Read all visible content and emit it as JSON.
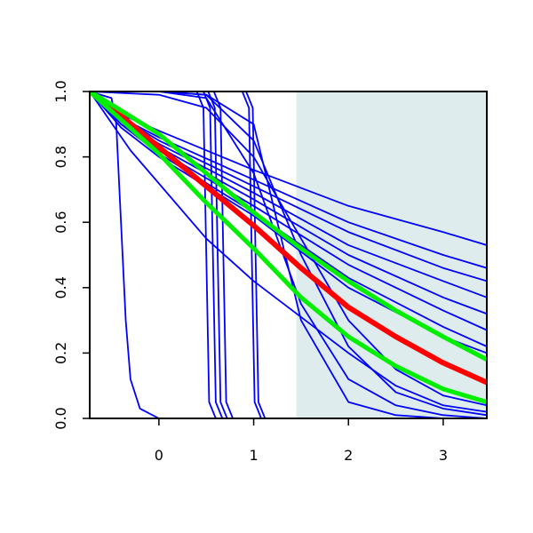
{
  "chart_data": {
    "type": "line",
    "xlim": [
      -0.73,
      3.46
    ],
    "ylim": [
      0,
      1
    ],
    "xticks": [
      0,
      1,
      2,
      3
    ],
    "yticks": [
      {
        "value": 0,
        "label": "0.0"
      },
      {
        "value": 0.2,
        "label": "0.2"
      },
      {
        "value": 0.4,
        "label": "0.4"
      },
      {
        "value": 0.6,
        "label": "0.6"
      },
      {
        "value": 0.8,
        "label": "0.8"
      },
      {
        "value": 1,
        "label": "1.0"
      }
    ],
    "shaded_region": {
      "x": [
        1.45,
        3.46
      ],
      "color": "#dfeced"
    },
    "series": [
      {
        "color": "#0000ff",
        "width": 1.8,
        "x": [
          -0.73,
          -0.4,
          0,
          1,
          2,
          3,
          3.46
        ],
        "values": [
          1,
          0.93,
          0.88,
          0.76,
          0.65,
          0.57,
          0.53
        ]
      },
      {
        "color": "#0000ff",
        "width": 1.8,
        "x": [
          -0.73,
          -0.4,
          0,
          1,
          2,
          3,
          3.46
        ],
        "values": [
          1,
          0.92,
          0.86,
          0.73,
          0.6,
          0.5,
          0.46
        ]
      },
      {
        "color": "#0000ff",
        "width": 1.8,
        "x": [
          -0.73,
          -0.4,
          0,
          1,
          2,
          3,
          3.46
        ],
        "values": [
          1,
          0.92,
          0.85,
          0.71,
          0.57,
          0.46,
          0.42
        ]
      },
      {
        "color": "#0000ff",
        "width": 1.8,
        "x": [
          -0.73,
          -0.4,
          0,
          1,
          2,
          3,
          3.46
        ],
        "values": [
          1,
          0.91,
          0.84,
          0.69,
          0.53,
          0.42,
          0.37
        ]
      },
      {
        "color": "#0000ff",
        "width": 1.8,
        "x": [
          -0.73,
          -0.4,
          0,
          1,
          2,
          3,
          3.46
        ],
        "values": [
          1,
          0.91,
          0.83,
          0.67,
          0.5,
          0.37,
          0.32
        ]
      },
      {
        "color": "#0000ff",
        "width": 1.8,
        "x": [
          -0.73,
          -0.4,
          0,
          1,
          2,
          3,
          3.46
        ],
        "values": [
          1,
          0.9,
          0.82,
          0.65,
          0.47,
          0.33,
          0.27
        ]
      },
      {
        "color": "#0000ff",
        "width": 1.8,
        "x": [
          -0.73,
          -0.4,
          0,
          1,
          2,
          3,
          3.46
        ],
        "values": [
          1,
          0.9,
          0.81,
          0.63,
          0.43,
          0.28,
          0.22
        ]
      },
      {
        "color": "#0000ff",
        "width": 1.8,
        "x": [
          -0.73,
          -0.4,
          0,
          1,
          2,
          3,
          3.46
        ],
        "values": [
          1,
          0.89,
          0.8,
          0.62,
          0.4,
          0.25,
          0.2
        ]
      },
      {
        "color": "#0000ff",
        "width": 1.8,
        "x": [
          -0.73,
          -0.5,
          -0.45,
          -0.4,
          -0.35,
          -0.3,
          -0.2,
          0,
          3.46
        ],
        "values": [
          1,
          0.98,
          0.9,
          0.6,
          0.3,
          0.12,
          0.03,
          0,
          0
        ]
      },
      {
        "color": "#0000ff",
        "width": 1.8,
        "x": [
          -0.73,
          -0.3,
          0.5,
          1,
          1.5,
          2,
          2.5,
          3,
          3.46
        ],
        "values": [
          1,
          0.82,
          0.55,
          0.42,
          0.31,
          0.2,
          0.1,
          0.04,
          0.02
        ]
      },
      {
        "color": "#0000ff",
        "width": 1.8,
        "x": [
          -0.73,
          0.4,
          0.47,
          0.5,
          0.53,
          0.6,
          3.46
        ],
        "values": [
          1,
          1,
          0.95,
          0.5,
          0.05,
          0,
          0
        ]
      },
      {
        "color": "#0000ff",
        "width": 1.8,
        "x": [
          -0.73,
          0.47,
          0.54,
          0.57,
          0.6,
          0.67,
          3.46
        ],
        "values": [
          1,
          1,
          0.95,
          0.5,
          0.05,
          0,
          0
        ]
      },
      {
        "color": "#0000ff",
        "width": 1.8,
        "x": [
          -0.73,
          0.52,
          0.59,
          0.62,
          0.65,
          0.72,
          3.46
        ],
        "values": [
          1,
          1,
          0.95,
          0.5,
          0.05,
          0,
          0
        ]
      },
      {
        "color": "#0000ff",
        "width": 1.8,
        "x": [
          -0.73,
          0.58,
          0.65,
          0.68,
          0.71,
          0.78,
          3.46
        ],
        "values": [
          1,
          1,
          0.95,
          0.5,
          0.05,
          0,
          0
        ]
      },
      {
        "color": "#0000ff",
        "width": 1.8,
        "x": [
          -0.73,
          0.88,
          0.95,
          0.98,
          1.01,
          1.08,
          3.46
        ],
        "values": [
          1,
          1,
          0.95,
          0.5,
          0.05,
          0,
          0
        ]
      },
      {
        "color": "#0000ff",
        "width": 1.8,
        "x": [
          -0.73,
          0.92,
          0.99,
          1.02,
          1.05,
          1.12,
          3.46
        ],
        "values": [
          1,
          1,
          0.95,
          0.5,
          0.05,
          0,
          0
        ]
      },
      {
        "color": "#0000ff",
        "width": 1.8,
        "x": [
          -0.73,
          0,
          0.5,
          1,
          1.5,
          2,
          2.5,
          3,
          3.46
        ],
        "values": [
          1,
          1,
          0.98,
          0.75,
          0.35,
          0.12,
          0.04,
          0.01,
          0
        ]
      },
      {
        "color": "#0000ff",
        "width": 1.8,
        "x": [
          -0.73,
          0,
          0.5,
          1,
          1.5,
          2,
          2.5,
          3,
          3.46
        ],
        "values": [
          1,
          1,
          0.99,
          0.85,
          0.5,
          0.22,
          0.08,
          0.03,
          0.01
        ]
      },
      {
        "color": "#0000ff",
        "width": 1.8,
        "x": [
          -0.73,
          0,
          0.5,
          1,
          1.5,
          2,
          2.5,
          3,
          3.46
        ],
        "values": [
          1,
          0.99,
          0.95,
          0.8,
          0.55,
          0.3,
          0.15,
          0.07,
          0.04
        ]
      },
      {
        "color": "#0000ff",
        "width": 1.8,
        "x": [
          -0.73,
          0,
          0.5,
          1,
          1.5,
          2,
          2.5,
          3,
          3.46
        ],
        "values": [
          1,
          1,
          0.99,
          0.9,
          0.3,
          0.05,
          0.01,
          0,
          0
        ]
      },
      {
        "color": "#ff0000",
        "width": 6,
        "x": [
          -0.73,
          -0.5,
          0,
          0.5,
          1,
          1.5,
          2,
          2.5,
          3,
          3.46
        ],
        "values": [
          1,
          0.95,
          0.83,
          0.71,
          0.59,
          0.46,
          0.34,
          0.25,
          0.17,
          0.11
        ]
      },
      {
        "color": "#00ee00",
        "width": 5,
        "x": [
          -0.73,
          -0.5,
          0,
          0.5,
          1,
          1.5,
          2,
          2.5,
          3,
          3.46
        ],
        "values": [
          1,
          0.96,
          0.87,
          0.75,
          0.63,
          0.52,
          0.42,
          0.33,
          0.25,
          0.18
        ]
      },
      {
        "color": "#00ee00",
        "width": 5,
        "x": [
          -0.73,
          -0.5,
          0,
          0.5,
          1,
          1.5,
          2,
          2.5,
          3,
          3.46
        ],
        "values": [
          1,
          0.94,
          0.81,
          0.66,
          0.52,
          0.37,
          0.25,
          0.16,
          0.09,
          0.05
        ]
      }
    ]
  }
}
